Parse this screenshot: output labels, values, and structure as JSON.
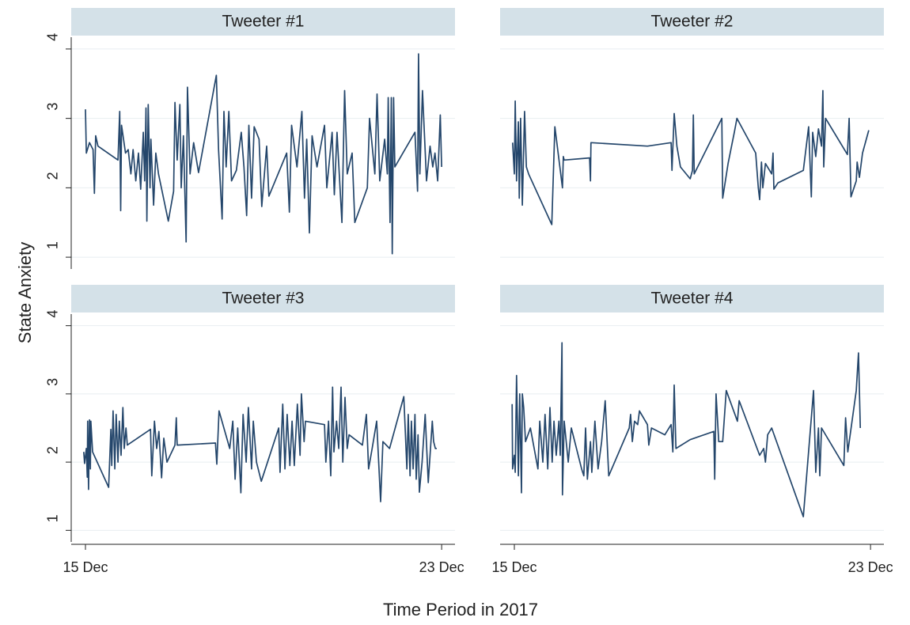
{
  "chart_data": {
    "type": "line",
    "ylabel": "State Anxiety",
    "xlabel": "Time Period in 2017",
    "color": "#24466b",
    "grid": true,
    "xlim": [
      14.68,
      23.3
    ],
    "ylim": [
      0.83,
      4.17
    ],
    "xticks": [
      {
        "value": 15,
        "label": "15 Dec"
      },
      {
        "value": 23,
        "label": "23 Dec"
      }
    ],
    "yticks": [
      1,
      2,
      3,
      4
    ],
    "panels": [
      {
        "title": "Tweeter #1",
        "x": [
          15.0,
          15.02,
          15.09,
          15.17,
          15.2,
          15.23,
          15.28,
          15.73,
          15.77,
          15.79,
          15.81,
          15.9,
          15.96,
          16.02,
          16.07,
          16.13,
          16.19,
          16.24,
          16.3,
          16.33,
          16.36,
          16.38,
          16.41,
          16.45,
          16.47,
          16.53,
          16.58,
          16.64,
          16.86,
          16.98,
          17.01,
          17.06,
          17.12,
          17.15,
          17.2,
          17.26,
          17.29,
          17.35,
          17.43,
          17.54,
          17.94,
          17.99,
          18.07,
          18.11,
          18.16,
          18.22,
          18.28,
          18.39,
          18.5,
          18.56,
          18.62,
          18.67,
          18.73,
          18.79,
          18.9,
          18.96,
          19.07,
          19.12,
          19.52,
          19.58,
          19.63,
          19.75,
          19.86,
          19.92,
          19.97,
          20.03,
          20.09,
          20.2,
          20.37,
          20.42,
          20.54,
          20.59,
          20.65,
          20.76,
          20.82,
          20.88,
          20.99,
          21.05,
          21.33,
          21.38,
          21.5,
          21.55,
          21.61,
          21.72,
          21.78,
          21.8,
          21.84,
          21.87,
          21.89,
          21.92,
          21.95,
          22.4,
          22.46,
          22.48,
          22.51,
          22.57,
          22.66,
          22.74,
          22.8,
          22.85,
          22.91,
          22.97,
          23.0
        ],
        "values": [
          3.13,
          2.5,
          2.65,
          2.55,
          1.92,
          2.75,
          2.6,
          2.4,
          3.1,
          1.67,
          2.9,
          2.5,
          2.55,
          2.2,
          2.55,
          2.1,
          2.5,
          1.98,
          2.8,
          2.1,
          3.15,
          1.52,
          3.2,
          2.0,
          2.7,
          1.75,
          2.5,
          2.2,
          1.52,
          1.95,
          3.23,
          2.4,
          3.2,
          2.0,
          2.75,
          1.22,
          3.45,
          2.2,
          2.65,
          2.22,
          3.62,
          2.55,
          1.55,
          3.1,
          2.3,
          3.1,
          2.1,
          2.25,
          2.8,
          2.3,
          1.6,
          2.9,
          1.85,
          2.88,
          2.7,
          1.73,
          2.6,
          1.88,
          2.5,
          1.65,
          2.9,
          2.3,
          3.1,
          1.85,
          2.7,
          1.35,
          2.75,
          2.3,
          2.9,
          2.0,
          2.8,
          1.9,
          2.8,
          1.5,
          3.4,
          2.2,
          2.5,
          1.5,
          2.0,
          3.0,
          2.2,
          3.35,
          2.1,
          2.7,
          2.2,
          3.3,
          1.5,
          3.3,
          1.05,
          3.3,
          2.3,
          2.8,
          1.95,
          3.93,
          2.2,
          3.4,
          2.1,
          2.6,
          2.3,
          2.5,
          2.1,
          3.05,
          2.3
        ]
      },
      {
        "title": "Tweeter #2",
        "x": [
          14.96,
          15.0,
          15.02,
          15.05,
          15.09,
          15.11,
          15.14,
          15.18,
          15.23,
          15.27,
          15.32,
          15.84,
          15.91,
          16.08,
          16.1,
          16.12,
          16.69,
          16.71,
          16.72,
          17.99,
          18.52,
          18.54,
          18.59,
          18.65,
          18.73,
          18.95,
          19.0,
          19.02,
          19.04,
          19.66,
          19.68,
          19.8,
          19.94,
          20.0,
          20.42,
          20.48,
          20.51,
          20.55,
          20.58,
          20.64,
          20.78,
          20.81,
          20.83,
          20.92,
          21.49,
          21.61,
          21.67,
          21.7,
          21.77,
          21.83,
          21.9,
          21.93,
          21.95,
          21.99,
          22.48,
          22.52,
          22.56,
          22.68,
          22.7,
          22.75,
          22.82,
          22.96
        ],
        "values": [
          2.65,
          2.2,
          3.25,
          2.1,
          2.95,
          1.85,
          3.0,
          1.75,
          3.1,
          2.3,
          2.2,
          1.47,
          2.88,
          2.0,
          2.45,
          2.4,
          2.43,
          2.1,
          2.65,
          2.6,
          2.65,
          2.25,
          3.07,
          2.6,
          2.3,
          2.13,
          2.25,
          3.05,
          2.2,
          3.0,
          1.85,
          2.35,
          2.8,
          3.0,
          2.5,
          2.0,
          1.83,
          2.37,
          2.0,
          2.35,
          2.2,
          2.5,
          1.98,
          2.07,
          2.25,
          2.88,
          1.87,
          2.8,
          2.45,
          2.85,
          2.6,
          3.4,
          2.3,
          3.0,
          2.48,
          3.0,
          1.87,
          2.1,
          2.37,
          2.15,
          2.5,
          2.83
        ]
      },
      {
        "title": "Tweeter #3",
        "x": [
          14.96,
          14.98,
          15.02,
          15.04,
          15.05,
          15.07,
          15.09,
          15.11,
          15.12,
          15.16,
          15.52,
          15.57,
          15.59,
          15.62,
          15.66,
          15.69,
          15.73,
          15.76,
          15.8,
          15.84,
          15.87,
          15.91,
          15.94,
          16.46,
          16.49,
          16.55,
          16.6,
          16.65,
          16.71,
          16.76,
          16.83,
          17.01,
          17.04,
          17.06,
          17.92,
          17.95,
          18.0,
          18.24,
          18.31,
          18.36,
          18.42,
          18.49,
          18.54,
          18.61,
          18.66,
          18.73,
          18.77,
          18.84,
          18.95,
          19.34,
          19.37,
          19.43,
          19.48,
          19.53,
          19.59,
          19.64,
          19.69,
          19.76,
          19.82,
          19.85,
          19.91,
          19.94,
          20.37,
          20.4,
          20.46,
          20.51,
          20.55,
          20.58,
          20.64,
          20.69,
          20.74,
          20.78,
          20.83,
          20.88,
          20.92,
          21.22,
          21.31,
          21.36,
          21.44,
          21.54,
          21.63,
          21.68,
          21.83,
          22.15,
          22.18,
          22.22,
          22.25,
          22.29,
          22.32,
          22.36,
          22.4,
          22.43,
          22.47,
          22.5,
          22.56,
          22.63,
          22.7,
          22.79,
          22.82,
          22.86,
          22.89
        ],
        "values": [
          2.15,
          1.98,
          2.2,
          1.78,
          2.6,
          1.6,
          2.62,
          1.9,
          2.6,
          2.15,
          1.63,
          2.48,
          1.95,
          2.75,
          1.9,
          2.7,
          2.0,
          2.6,
          2.1,
          2.8,
          2.2,
          2.5,
          2.25,
          2.48,
          1.8,
          2.6,
          2.2,
          2.45,
          1.77,
          2.35,
          2.0,
          2.25,
          2.65,
          2.25,
          2.28,
          1.97,
          2.75,
          2.2,
          2.6,
          1.75,
          2.5,
          1.55,
          2.7,
          2.0,
          2.8,
          1.9,
          2.6,
          2.0,
          1.72,
          2.5,
          1.85,
          2.85,
          1.9,
          2.7,
          1.95,
          2.6,
          1.95,
          2.85,
          2.1,
          3.0,
          2.3,
          2.6,
          2.55,
          2.0,
          2.6,
          1.8,
          3.1,
          2.15,
          2.6,
          2.2,
          3.1,
          2.0,
          2.95,
          2.2,
          2.4,
          2.25,
          2.7,
          1.9,
          2.2,
          2.6,
          1.42,
          2.3,
          2.2,
          2.96,
          2.5,
          1.9,
          2.7,
          1.8,
          2.6,
          1.9,
          2.7,
          1.75,
          2.4,
          1.56,
          2.0,
          2.7,
          1.7,
          2.6,
          2.3,
          2.2,
          2.2
        ]
      },
      {
        "title": "Tweeter #4",
        "x": [
          14.95,
          14.96,
          15.0,
          15.02,
          15.05,
          15.09,
          15.12,
          15.16,
          15.18,
          15.21,
          15.25,
          15.36,
          15.53,
          15.57,
          15.64,
          15.69,
          15.75,
          15.8,
          15.85,
          15.89,
          15.94,
          16.0,
          16.03,
          16.07,
          16.08,
          16.12,
          16.21,
          16.28,
          16.51,
          16.56,
          16.6,
          16.64,
          16.71,
          16.74,
          16.81,
          16.88,
          16.96,
          17.04,
          17.12,
          17.58,
          17.61,
          17.65,
          17.7,
          17.77,
          17.81,
          17.99,
          18.02,
          18.08,
          18.38,
          18.52,
          18.56,
          18.59,
          18.63,
          18.95,
          19.48,
          19.5,
          19.53,
          19.59,
          19.68,
          19.76,
          20.01,
          20.05,
          20.51,
          20.6,
          20.64,
          20.69,
          20.78,
          21.49,
          21.72,
          21.77,
          21.83,
          21.86,
          21.9,
          22.4,
          22.44,
          22.49,
          22.68,
          22.73,
          22.77
        ],
        "values": [
          2.85,
          1.9,
          2.1,
          1.85,
          3.27,
          1.8,
          3.0,
          1.55,
          3.0,
          2.8,
          2.3,
          2.5,
          1.9,
          2.6,
          2.0,
          2.7,
          1.9,
          2.8,
          2.0,
          2.6,
          2.1,
          2.6,
          2.1,
          3.75,
          1.52,
          2.6,
          2.0,
          2.5,
          1.9,
          1.8,
          2.5,
          1.75,
          2.3,
          1.85,
          2.6,
          1.9,
          2.3,
          2.9,
          1.8,
          2.5,
          2.7,
          2.3,
          2.6,
          2.55,
          2.75,
          2.55,
          2.25,
          2.5,
          2.4,
          2.55,
          2.15,
          3.13,
          2.2,
          2.33,
          2.45,
          1.75,
          3.0,
          2.3,
          2.3,
          3.05,
          2.6,
          2.9,
          2.1,
          2.2,
          2.0,
          2.4,
          2.5,
          1.2,
          3.05,
          1.85,
          2.5,
          1.8,
          2.5,
          1.95,
          2.65,
          2.15,
          3.05,
          3.6,
          2.5
        ]
      }
    ]
  }
}
